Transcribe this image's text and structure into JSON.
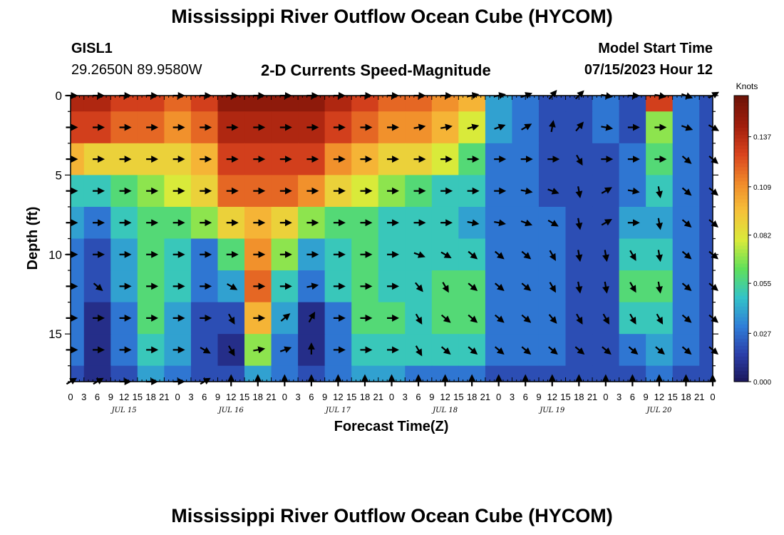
{
  "header": {
    "title": "Mississippi River Outflow Ocean Cube (HYCOM)",
    "station_id": "GISL1",
    "station_coords": "29.2650N  89.9580W",
    "plot_subtitle": "2-D Currents Speed-Magnitude",
    "model_start_label": "Model Start Time",
    "model_start_value": "07/15/2023 Hour 12"
  },
  "footer": {
    "next_title": "Mississippi River Outflow Ocean Cube (HYCOM)"
  },
  "colorbar": {
    "unit_label": "Knots",
    "ticks": [
      "0.137",
      "0.109",
      "0.082",
      "0.055",
      "0.027",
      "0.000"
    ],
    "colors": [
      "#1a1456",
      "#2b3ea8",
      "#2f7ed8",
      "#33c3c8",
      "#5fe05a",
      "#d9ea3a",
      "#f6c23a",
      "#f08a2a",
      "#d9441e",
      "#a11e0d",
      "#6e1408"
    ]
  },
  "chart_data": {
    "type": "heatmap",
    "xlabel": "Forecast Time(Z)",
    "ylabel": "Depth (ft)",
    "x_tick_labels": [
      "0",
      "3",
      "6",
      "9",
      "12",
      "15",
      "18",
      "21",
      "0",
      "3",
      "6",
      "9",
      "12",
      "15",
      "18",
      "21",
      "0",
      "3",
      "6",
      "9",
      "12",
      "15",
      "18",
      "21",
      "0",
      "3",
      "6",
      "9",
      "12",
      "15",
      "18",
      "21",
      "0",
      "3",
      "6",
      "9",
      "12",
      "15",
      "18",
      "21",
      "0",
      "3",
      "6",
      "9",
      "12",
      "15",
      "18",
      "21",
      "0"
    ],
    "date_labels": [
      "JUL 15",
      "JUL 16",
      "JUL 17",
      "JUL 18",
      "JUL 19",
      "JUL 20"
    ],
    "y_ticks": [
      0,
      5,
      10,
      15
    ],
    "xlim_hours": [
      0,
      144
    ],
    "ylim_ft": [
      0,
      18
    ],
    "vmin_knots": 0,
    "vmax_knots": 0.16,
    "depth_levels_ft": [
      0,
      2,
      4,
      6,
      8,
      10,
      12,
      14,
      16,
      18
    ],
    "time_hours": [
      0,
      6,
      12,
      18,
      24,
      30,
      36,
      42,
      48,
      54,
      60,
      66,
      72,
      78,
      84,
      90,
      96,
      102,
      108,
      114,
      120,
      126,
      132,
      138,
      144
    ],
    "speed_knots": [
      [
        0.14,
        0.14,
        0.13,
        0.13,
        0.12,
        0.13,
        0.15,
        0.15,
        0.15,
        0.15,
        0.14,
        0.13,
        0.12,
        0.12,
        0.11,
        0.1,
        0.04,
        0.03,
        0.02,
        0.02,
        0.03,
        0.02,
        0.13,
        0.03,
        0.02
      ],
      [
        0.13,
        0.13,
        0.12,
        0.12,
        0.11,
        0.12,
        0.14,
        0.14,
        0.14,
        0.14,
        0.13,
        0.12,
        0.11,
        0.11,
        0.1,
        0.08,
        0.04,
        0.03,
        0.02,
        0.02,
        0.03,
        0.02,
        0.07,
        0.03,
        0.02
      ],
      [
        0.1,
        0.09,
        0.09,
        0.09,
        0.09,
        0.1,
        0.13,
        0.13,
        0.13,
        0.13,
        0.11,
        0.1,
        0.09,
        0.09,
        0.08,
        0.06,
        0.03,
        0.03,
        0.02,
        0.02,
        0.02,
        0.03,
        0.06,
        0.03,
        0.02
      ],
      [
        0.05,
        0.05,
        0.06,
        0.07,
        0.08,
        0.09,
        0.12,
        0.12,
        0.12,
        0.11,
        0.09,
        0.08,
        0.07,
        0.06,
        0.05,
        0.05,
        0.03,
        0.03,
        0.02,
        0.02,
        0.02,
        0.03,
        0.05,
        0.03,
        0.02
      ],
      [
        0.04,
        0.03,
        0.05,
        0.06,
        0.06,
        0.07,
        0.09,
        0.1,
        0.09,
        0.07,
        0.06,
        0.06,
        0.05,
        0.05,
        0.05,
        0.04,
        0.03,
        0.03,
        0.03,
        0.02,
        0.02,
        0.04,
        0.04,
        0.03,
        0.02
      ],
      [
        0.03,
        0.02,
        0.04,
        0.06,
        0.05,
        0.03,
        0.06,
        0.11,
        0.07,
        0.04,
        0.05,
        0.06,
        0.05,
        0.05,
        0.05,
        0.05,
        0.03,
        0.03,
        0.03,
        0.02,
        0.02,
        0.05,
        0.05,
        0.03,
        0.02
      ],
      [
        0.03,
        0.02,
        0.04,
        0.06,
        0.05,
        0.03,
        0.04,
        0.12,
        0.05,
        0.03,
        0.05,
        0.06,
        0.05,
        0.05,
        0.06,
        0.06,
        0.03,
        0.03,
        0.03,
        0.02,
        0.02,
        0.06,
        0.06,
        0.03,
        0.02
      ],
      [
        0.03,
        0.01,
        0.03,
        0.06,
        0.04,
        0.02,
        0.02,
        0.1,
        0.04,
        0.01,
        0.03,
        0.06,
        0.06,
        0.05,
        0.06,
        0.06,
        0.03,
        0.03,
        0.03,
        0.02,
        0.02,
        0.05,
        0.05,
        0.03,
        0.02
      ],
      [
        0.03,
        0.01,
        0.03,
        0.05,
        0.04,
        0.02,
        0.01,
        0.07,
        0.03,
        0.01,
        0.03,
        0.05,
        0.05,
        0.05,
        0.05,
        0.05,
        0.03,
        0.03,
        0.03,
        0.02,
        0.02,
        0.03,
        0.04,
        0.03,
        0.02
      ],
      [
        0.02,
        0.01,
        0.02,
        0.04,
        0.03,
        0.02,
        0.02,
        0.04,
        0.03,
        0.02,
        0.03,
        0.04,
        0.04,
        0.03,
        0.03,
        0.03,
        0.02,
        0.02,
        0.02,
        0.02,
        0.02,
        0.02,
        0.03,
        0.02,
        0.02
      ]
    ],
    "direction_deg": [
      [
        90,
        90,
        90,
        90,
        90,
        90,
        90,
        90,
        90,
        90,
        90,
        90,
        90,
        90,
        90,
        80,
        80,
        70,
        40,
        45,
        100,
        90,
        100,
        110,
        60
      ],
      [
        90,
        90,
        90,
        90,
        90,
        90,
        90,
        90,
        90,
        90,
        90,
        90,
        90,
        80,
        80,
        75,
        70,
        60,
        10,
        40,
        100,
        90,
        90,
        110,
        120
      ],
      [
        90,
        90,
        90,
        90,
        90,
        90,
        90,
        90,
        90,
        90,
        90,
        90,
        90,
        90,
        90,
        90,
        90,
        90,
        90,
        150,
        90,
        90,
        90,
        130,
        130
      ],
      [
        90,
        90,
        90,
        90,
        90,
        90,
        90,
        90,
        90,
        90,
        90,
        90,
        90,
        90,
        90,
        90,
        90,
        100,
        110,
        170,
        60,
        100,
        170,
        130,
        130
      ],
      [
        90,
        90,
        90,
        90,
        90,
        90,
        90,
        90,
        90,
        90,
        90,
        90,
        90,
        90,
        90,
        100,
        100,
        110,
        120,
        170,
        60,
        90,
        170,
        130,
        130
      ],
      [
        90,
        90,
        90,
        90,
        90,
        90,
        90,
        90,
        90,
        90,
        90,
        90,
        90,
        110,
        120,
        130,
        130,
        130,
        150,
        170,
        170,
        150,
        170,
        130,
        130
      ],
      [
        90,
        130,
        90,
        90,
        90,
        90,
        120,
        90,
        90,
        80,
        90,
        90,
        90,
        140,
        150,
        130,
        130,
        130,
        150,
        170,
        170,
        150,
        170,
        130,
        130
      ],
      [
        90,
        90,
        90,
        90,
        90,
        90,
        150,
        90,
        50,
        30,
        90,
        90,
        90,
        150,
        130,
        130,
        130,
        130,
        140,
        150,
        150,
        150,
        150,
        130,
        130
      ],
      [
        90,
        90,
        90,
        90,
        90,
        120,
        150,
        80,
        70,
        0,
        90,
        90,
        90,
        150,
        130,
        130,
        130,
        130,
        130,
        130,
        130,
        130,
        130,
        130,
        130
      ],
      [
        60,
        60,
        90,
        90,
        90,
        60,
        0,
        0,
        0,
        0,
        0,
        0,
        0,
        0,
        0,
        0,
        0,
        0,
        0,
        0,
        0,
        0,
        0,
        0,
        0
      ]
    ]
  }
}
